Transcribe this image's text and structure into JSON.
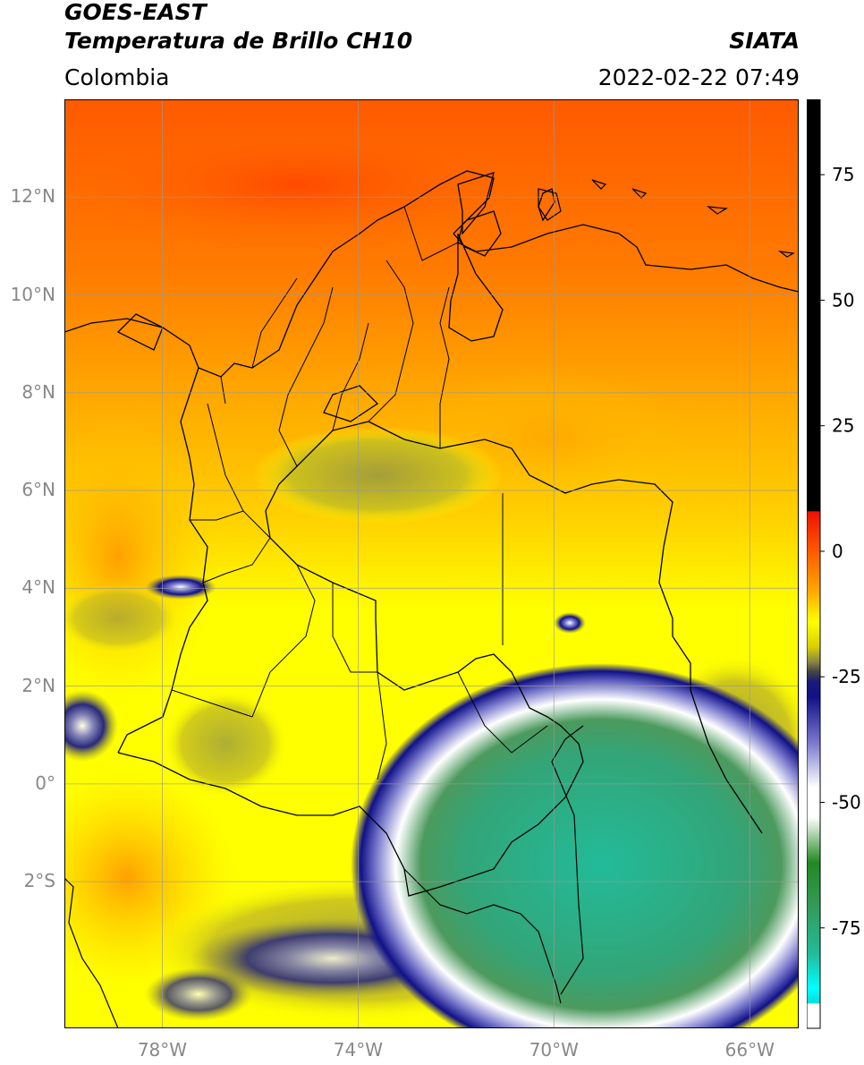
{
  "header": {
    "satellite": "GOES-EAST",
    "product": "Temperatura de Brillo CH10",
    "brand": "SIATA",
    "region": "Colombia",
    "datetime": "2022-02-22 07:49"
  },
  "map": {
    "lon_range": [
      -80,
      -65
    ],
    "lat_range": [
      -5,
      14
    ],
    "lon_ticks": [
      {
        "value": -78,
        "label": "78°W"
      },
      {
        "value": -74,
        "label": "74°W"
      },
      {
        "value": -70,
        "label": "70°W"
      },
      {
        "value": -66,
        "label": "66°W"
      }
    ],
    "lat_ticks": [
      {
        "value": 12,
        "label": "12°N"
      },
      {
        "value": 10,
        "label": "10°N"
      },
      {
        "value": 8,
        "label": "8°N"
      },
      {
        "value": 6,
        "label": "6°N"
      },
      {
        "value": 4,
        "label": "4°N"
      },
      {
        "value": 2,
        "label": "2°N"
      },
      {
        "value": 0,
        "label": "0°"
      },
      {
        "value": -2,
        "label": "2°S"
      }
    ],
    "gridlines": true,
    "gridline_color": "#999999",
    "tick_label_color": "#888888"
  },
  "colorbar": {
    "range": [
      -95,
      90
    ],
    "ticks": [
      {
        "value": 75,
        "label": "75"
      },
      {
        "value": 50,
        "label": "50"
      },
      {
        "value": 25,
        "label": "25"
      },
      {
        "value": 0,
        "label": "0"
      },
      {
        "value": -25,
        "label": "-25"
      },
      {
        "value": -50,
        "label": "-50"
      },
      {
        "value": -75,
        "label": "-75"
      }
    ],
    "stops": [
      {
        "value": 90,
        "color": "#000000"
      },
      {
        "value": 8,
        "color": "#000000"
      },
      {
        "value": 7.9,
        "color": "#ee1100"
      },
      {
        "value": 0,
        "color": "#ff5a00"
      },
      {
        "value": -8,
        "color": "#ffa800"
      },
      {
        "value": -14,
        "color": "#ffff00"
      },
      {
        "value": -19,
        "color": "#d8d000"
      },
      {
        "value": -22,
        "color": "#888844"
      },
      {
        "value": -24,
        "color": "#444444"
      },
      {
        "value": -26,
        "color": "#1a1a7a"
      },
      {
        "value": -29,
        "color": "#111188"
      },
      {
        "value": -38,
        "color": "#7777cc"
      },
      {
        "value": -47,
        "color": "#ffffff"
      },
      {
        "value": -53,
        "color": "#ffffff"
      },
      {
        "value": -62,
        "color": "#228822"
      },
      {
        "value": -70,
        "color": "#339955"
      },
      {
        "value": -80,
        "color": "#22bb99"
      },
      {
        "value": -87,
        "color": "#00ffff"
      },
      {
        "value": -90,
        "color": "#00dddd"
      },
      {
        "value": -90.1,
        "color": "#ffffff"
      },
      {
        "value": -95,
        "color": "#ffffff"
      }
    ]
  }
}
